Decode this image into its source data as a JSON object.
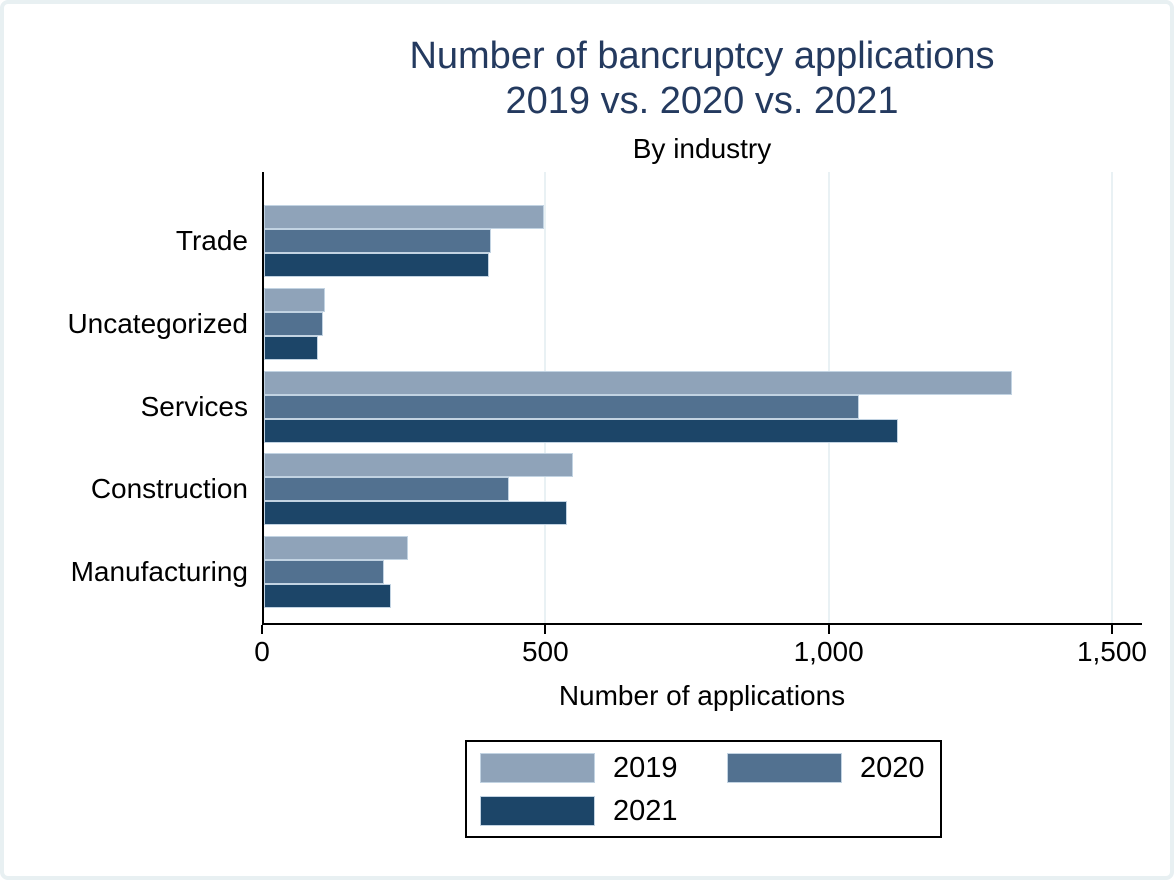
{
  "chart_data": {
    "type": "bar",
    "orientation": "horizontal",
    "title_line1": "Number of bancruptcy applications",
    "title_line2": "2019 vs. 2020 vs. 2021",
    "subtitle": "By industry",
    "xlabel": "Number of applications",
    "categories": [
      "Trade",
      "Uncategorized",
      "Services",
      "Construction",
      "Manufacturing"
    ],
    "series": [
      {
        "name": "2019",
        "color": "#8fa3b9",
        "values": [
          495,
          108,
          1320,
          545,
          254
        ]
      },
      {
        "name": "2020",
        "color": "#527190",
        "values": [
          400,
          104,
          1050,
          433,
          211
        ]
      },
      {
        "name": "2021",
        "color": "#1c4568",
        "values": [
          397,
          95,
          1118,
          534,
          224
        ]
      }
    ],
    "x_ticks": [
      {
        "value": 0,
        "label": "0"
      },
      {
        "value": 500,
        "label": "500"
      },
      {
        "value": 1000,
        "label": "1,000"
      },
      {
        "value": 1500,
        "label": "1,500"
      }
    ],
    "gridlines": [
      500,
      1000,
      1500
    ],
    "x_axis_drawn_max": 1553,
    "grid_on": true,
    "legend_position": "bottom",
    "legend_items": [
      "2019",
      "2020",
      "2021"
    ],
    "colors": {
      "title": "#243a5f",
      "axis": "#000000",
      "gridline": "#e9f1f4",
      "frame_border": "#e8f0f2",
      "background": "#ffffff",
      "bar_outline": "#c2d3e2"
    }
  }
}
